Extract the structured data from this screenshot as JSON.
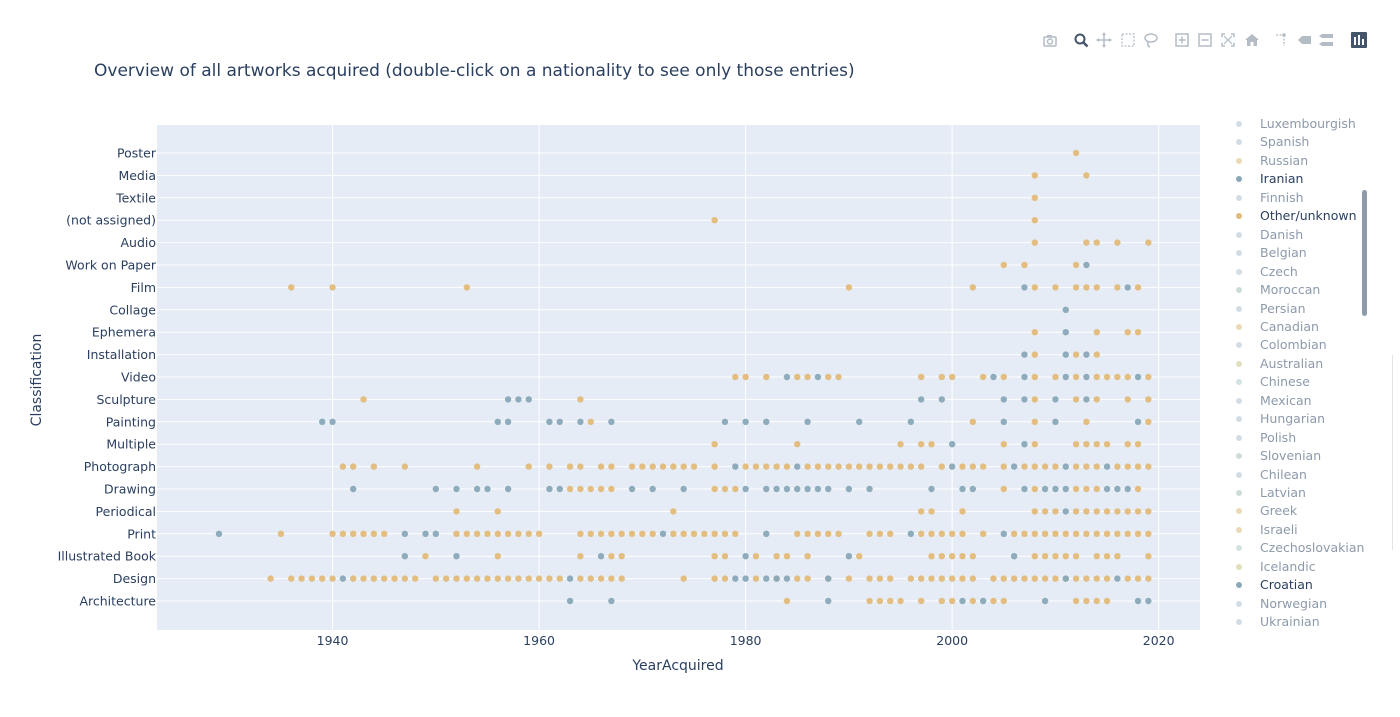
{
  "colors": {
    "plot_bg": "#e5ecf6",
    "grid": "#ffffff",
    "orange": "#e3bb79",
    "blue": "#89a8b8",
    "text": "#2a3f5f",
    "modebar_icon": "#b4bcc5",
    "modebar_active": "#44546a"
  },
  "modebar": [
    {
      "name": "camera-icon"
    },
    {
      "name": "zoom-icon"
    },
    {
      "name": "pan-icon"
    },
    {
      "name": "box-select-icon"
    },
    {
      "name": "lasso-select-icon"
    },
    {
      "name": "zoom-in-icon"
    },
    {
      "name": "zoom-out-icon"
    },
    {
      "name": "autoscale-icon"
    },
    {
      "name": "reset-axes-icon"
    },
    {
      "name": "spike-lines-icon"
    },
    {
      "name": "hover-closest-icon"
    },
    {
      "name": "hover-compare-icon"
    },
    {
      "name": "plotly-logo-icon"
    }
  ],
  "chart_data": {
    "type": "scatter",
    "title": "Overview of all artworks acquired (double-click on a nationality to see only those entries)",
    "xlabel": "YearAcquired",
    "ylabel": "Classification",
    "xlim": [
      1923,
      2024
    ],
    "xticks": [
      1940,
      1960,
      1980,
      2000,
      2020
    ],
    "grid": true,
    "legend_placement": "right",
    "categories": [
      "Architecture",
      "Design",
      "Illustrated Book",
      "Print",
      "Periodical",
      "Drawing",
      "Photograph",
      "Multiple",
      "Painting",
      "Sculpture",
      "Video",
      "Installation",
      "Ephemera",
      "Collage",
      "Film",
      "Work on Paper",
      "Audio",
      "(not assigned)",
      "Textile",
      "Media",
      "Poster"
    ],
    "legend": [
      {
        "label": "Luxembourgish",
        "color": "#c4d2dc",
        "active": false
      },
      {
        "label": "Spanish",
        "color": "#c4d2dc",
        "active": false
      },
      {
        "label": "Russian",
        "color": "#e3cd9e",
        "active": false
      },
      {
        "label": "Iranian",
        "color": "#89a8b8",
        "active": true
      },
      {
        "label": "Finnish",
        "color": "#c4d2dc",
        "active": false
      },
      {
        "label": "Other/unknown",
        "color": "#e3bb79",
        "active": true
      },
      {
        "label": "Danish",
        "color": "#c4d2dc",
        "active": false
      },
      {
        "label": "Belgian",
        "color": "#c4d2dc",
        "active": false
      },
      {
        "label": "Czech",
        "color": "#c4d2dc",
        "active": false
      },
      {
        "label": "Moroccan",
        "color": "#bcd2c8",
        "active": false
      },
      {
        "label": "Persian",
        "color": "#c4d2dc",
        "active": false
      },
      {
        "label": "Canadian",
        "color": "#e3cd9e",
        "active": false
      },
      {
        "label": "Colombian",
        "color": "#c4d2dc",
        "active": false
      },
      {
        "label": "Australian",
        "color": "#d8d4a4",
        "active": false
      },
      {
        "label": "Chinese",
        "color": "#c4d8d8",
        "active": false
      },
      {
        "label": "Mexican",
        "color": "#c4d2dc",
        "active": false
      },
      {
        "label": "Hungarian",
        "color": "#c4d2dc",
        "active": false
      },
      {
        "label": "Polish",
        "color": "#c4d2dc",
        "active": false
      },
      {
        "label": "Slovenian",
        "color": "#bcd2c8",
        "active": false
      },
      {
        "label": "Chilean",
        "color": "#c4d2dc",
        "active": false
      },
      {
        "label": "Latvian",
        "color": "#bcd2c8",
        "active": false
      },
      {
        "label": "Greek",
        "color": "#e3cd9e",
        "active": false
      },
      {
        "label": "Israeli",
        "color": "#e3cd9e",
        "active": false
      },
      {
        "label": "Czechoslovakian",
        "color": "#c4d8d8",
        "active": false
      },
      {
        "label": "Icelandic",
        "color": "#d8d4a4",
        "active": false
      },
      {
        "label": "Croatian",
        "color": "#89a8b8",
        "active": true
      },
      {
        "label": "Norwegian",
        "color": "#c4d2dc",
        "active": false
      },
      {
        "label": "Ukrainian",
        "color": "#c4d2dc",
        "active": false
      }
    ],
    "series": [
      {
        "name": "Other/unknown",
        "color": "#e3bb79",
        "points": {
          "Poster": [
            2012
          ],
          "Media": [
            2008,
            2013
          ],
          "Textile": [
            2008
          ],
          "(not assigned)": [
            1977,
            2008
          ],
          "Audio": [
            2008,
            2013,
            2014,
            2016,
            2019
          ],
          "Work on Paper": [
            2005,
            2007,
            2012
          ],
          "Film": [
            1936,
            1940,
            1953,
            1990,
            2002,
            2008,
            2010,
            2012,
            2013,
            2014,
            2016,
            2018
          ],
          "Ephemera": [
            2008,
            2014,
            2017,
            2018
          ],
          "Installation": [
            2008,
            2012,
            2014
          ],
          "Video": [
            1979,
            1980,
            1982,
            1985,
            1986,
            1988,
            1989,
            1997,
            1999,
            2000,
            2003,
            2005,
            2008,
            2010,
            2012,
            2014,
            2015,
            2016,
            2017,
            2019
          ],
          "Sculpture": [
            1943,
            1964,
            2008,
            2012,
            2014,
            2017,
            2019
          ],
          "Painting": [
            1965,
            2002,
            2008,
            2013,
            2019
          ],
          "Multiple": [
            1977,
            1985,
            1995,
            1997,
            1998,
            2005,
            2008,
            2012,
            2013,
            2014,
            2015,
            2017,
            2018
          ],
          "Photograph": [
            1941,
            1942,
            1944,
            1947,
            1954,
            1959,
            1961,
            1963,
            1964,
            1966,
            1967,
            1969,
            1970,
            1971,
            1972,
            1973,
            1974,
            1975,
            1977,
            1980,
            1981,
            1982,
            1983,
            1984,
            1986,
            1987,
            1988,
            1989,
            1990,
            1991,
            1992,
            1993,
            1994,
            1995,
            1996,
            1997,
            1999,
            2001,
            2002,
            2003,
            2005,
            2007,
            2008,
            2009,
            2010,
            2012,
            2013,
            2014,
            2016,
            2017,
            2018,
            2019
          ],
          "Drawing": [
            1963,
            1964,
            1965,
            1966,
            1967,
            1977,
            1978,
            1979,
            2005,
            2008,
            2012,
            2013,
            2014,
            2018
          ],
          "Periodical": [
            1952,
            1956,
            1973,
            1997,
            1998,
            2001,
            2008,
            2009,
            2010,
            2012,
            2013,
            2014,
            2015,
            2016,
            2017,
            2018,
            2019
          ],
          "Print": [
            1935,
            1940,
            1941,
            1942,
            1943,
            1944,
            1945,
            1952,
            1953,
            1954,
            1955,
            1956,
            1957,
            1958,
            1959,
            1960,
            1964,
            1965,
            1966,
            1967,
            1968,
            1969,
            1970,
            1971,
            1973,
            1974,
            1975,
            1976,
            1977,
            1978,
            1979,
            1985,
            1986,
            1987,
            1988,
            1989,
            1992,
            1993,
            1994,
            1997,
            1998,
            1999,
            2000,
            2001,
            2003,
            2006,
            2007,
            2008,
            2009,
            2010,
            2011,
            2012,
            2013,
            2014,
            2015,
            2016,
            2017,
            2018,
            2019
          ],
          "Illustrated Book": [
            1949,
            1956,
            1964,
            1967,
            1968,
            1977,
            1978,
            1981,
            1983,
            1984,
            1986,
            1991,
            1998,
            1999,
            2000,
            2001,
            2002,
            2008,
            2009,
            2010,
            2011,
            2012,
            2014,
            2015,
            2016,
            2019
          ],
          "Design": [
            1934,
            1936,
            1937,
            1938,
            1939,
            1940,
            1942,
            1943,
            1944,
            1945,
            1946,
            1947,
            1948,
            1950,
            1951,
            1952,
            1953,
            1954,
            1955,
            1956,
            1957,
            1958,
            1959,
            1960,
            1961,
            1962,
            1964,
            1965,
            1966,
            1967,
            1968,
            1974,
            1977,
            1978,
            1981,
            1983,
            1985,
            1986,
            1988,
            1990,
            1992,
            1993,
            1994,
            1996,
            1997,
            1998,
            1999,
            2000,
            2001,
            2002,
            2004,
            2005,
            2006,
            2007,
            2008,
            2009,
            2010,
            2011,
            2012,
            2013,
            2014,
            2015,
            2017,
            2018,
            2019
          ],
          "Architecture": [
            1984,
            1992,
            1993,
            1994,
            1995,
            1997,
            1999,
            2000,
            2002,
            2004,
            2005,
            2012,
            2013,
            2014,
            2015
          ]
        }
      },
      {
        "name": "Iranian / Croatian",
        "color": "#89a8b8",
        "points": {
          "Work on Paper": [
            2013
          ],
          "Film": [
            2007,
            2017
          ],
          "Collage": [
            2011
          ],
          "Ephemera": [
            2011
          ],
          "Installation": [
            2007,
            2011,
            2013
          ],
          "Video": [
            1984,
            1987,
            2004,
            2007,
            2011,
            2013,
            2018
          ],
          "Sculpture": [
            1957,
            1958,
            1959,
            1997,
            1999,
            2005,
            2007,
            2010,
            2013
          ],
          "Painting": [
            1939,
            1940,
            1956,
            1957,
            1961,
            1962,
            1964,
            1967,
            1978,
            1980,
            1982,
            1986,
            1991,
            1996,
            2005,
            2010,
            2018
          ],
          "Multiple": [
            2000,
            2007
          ],
          "Photograph": [
            1979,
            1985,
            2000,
            2006,
            2011,
            2015
          ],
          "Drawing": [
            1942,
            1950,
            1952,
            1954,
            1955,
            1957,
            1961,
            1962,
            1969,
            1971,
            1974,
            1980,
            1982,
            1983,
            1984,
            1985,
            1986,
            1987,
            1988,
            1990,
            1992,
            1998,
            2001,
            2002,
            2007,
            2009,
            2010,
            2011,
            2015,
            2016,
            2017
          ],
          "Periodical": [
            2011
          ],
          "Print": [
            1929,
            1947,
            1949,
            1950,
            1972,
            1982,
            1996,
            2005
          ],
          "Illustrated Book": [
            1947,
            1952,
            1966,
            1980,
            1990,
            2006
          ],
          "Design": [
            1941,
            1963,
            1979,
            1980,
            1982,
            1983,
            1984,
            1988,
            2011,
            2016
          ],
          "Architecture": [
            1963,
            1967,
            1988,
            2001,
            2003,
            2009,
            2018,
            2019
          ]
        }
      }
    ]
  }
}
